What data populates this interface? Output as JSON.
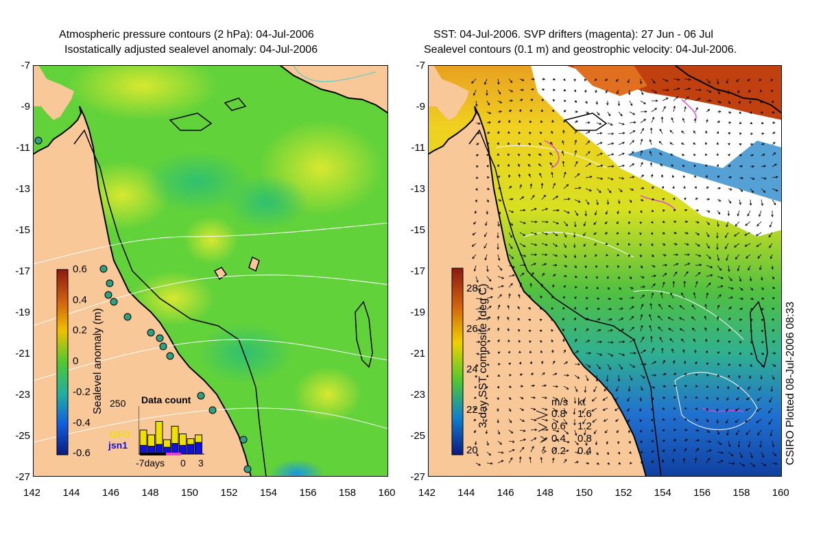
{
  "left_panel": {
    "title_line1": "Atmospheric pressure contours (2 hPa): 04-Jul-2006",
    "title_line2": "Isostatically adjusted sealevel anomaly: 04-Jul-2006",
    "colorbar_label": "Sealevel anomaly (m)",
    "colorbar_ticks": [
      "0.6",
      "0.4",
      "0.2",
      "0",
      "-0.2",
      "-0.4",
      "-0.6"
    ],
    "inset": {
      "title": "Data count",
      "y_label": "250",
      "x_labels": [
        "-7days",
        "0",
        "3"
      ],
      "legend": [
        {
          "label": "GFO",
          "color": "#f0e000"
        },
        {
          "label": "jsn1",
          "color": "#1010e0"
        }
      ],
      "gfo_counts": [
        80,
        60,
        120,
        40,
        90,
        60,
        30,
        40
      ],
      "jsn1_counts": [
        45,
        40,
        50,
        35,
        55,
        45,
        50,
        60
      ]
    }
  },
  "right_panel": {
    "title_line1": "SST: 04-Jul-2006. SVP drifters (magenta): 27 Jun - 06 Jul",
    "title_line2": "Sealevel contours (0.1 m) and geostrophic velocity: 04-Jul-2006.",
    "colorbar_label": "3-day SST composite (deg C)",
    "colorbar_ticks": [
      "28",
      "26",
      "24",
      "22",
      "20"
    ],
    "velocity_legend": {
      "header_ms": "m/s",
      "header_kt": "kt",
      "rows": [
        {
          "ms": "0.8",
          "kt": "1.6"
        },
        {
          "ms": "0.6",
          "kt": "1.2"
        },
        {
          "ms": "0.4",
          "kt": "0.8"
        },
        {
          "ms": "0.2",
          "kt": "0.4"
        }
      ]
    }
  },
  "axes": {
    "y_ticks": [
      "-7",
      "-9",
      "-11",
      "-13",
      "-15",
      "-17",
      "-19",
      "-21",
      "-23",
      "-25",
      "-27"
    ],
    "x_ticks": [
      "142",
      "144",
      "146",
      "148",
      "150",
      "152",
      "154",
      "156",
      "158",
      "160"
    ]
  },
  "credit": "CSIRO Plotted 08-Jul-2006 08:33",
  "colors": {
    "land": "#f8c898",
    "sea_green": "#62d23a",
    "sst_yellow": "#e8d020",
    "sst_blue": "#2060d8",
    "sst_red": "#c03010"
  }
}
